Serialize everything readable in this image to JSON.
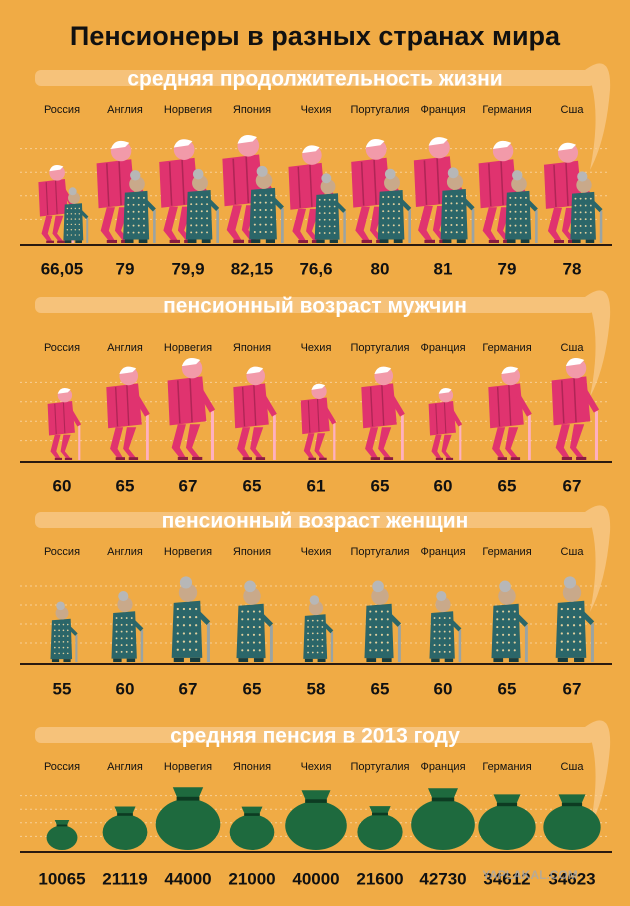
{
  "title": "Пенсионеры в разных странах мира",
  "watermark": "YAPLAKAL.COM",
  "chart_data": [
    {
      "type": "pictogram",
      "icon": "couple",
      "title": "средняя продолжительность жизни",
      "categories": [
        "Россия",
        "Англия",
        "Норвегия",
        "Япония",
        "Чехия",
        "Португалия",
        "Франция",
        "Германия",
        "Сша"
      ],
      "values": [
        66.05,
        79,
        79.9,
        82.15,
        76.6,
        80,
        81,
        79,
        78
      ],
      "value_labels": [
        "66,05",
        "79",
        "79,9",
        "82,15",
        "76,6",
        "80",
        "81",
        "79",
        "78"
      ],
      "colors": [
        "#e0336f",
        "#2b6669"
      ]
    },
    {
      "type": "pictogram",
      "icon": "man",
      "title": "пенсионный возраст мужчин",
      "categories": [
        "Россия",
        "Англия",
        "Норвегия",
        "Япония",
        "Чехия",
        "Португалия",
        "Франция",
        "Германия",
        "Сша"
      ],
      "values": [
        60,
        65,
        67,
        65,
        61,
        65,
        60,
        65,
        67
      ],
      "colors": [
        "#e0336f"
      ]
    },
    {
      "type": "pictogram",
      "icon": "woman",
      "title": "пенсионный возраст женщин",
      "categories": [
        "Россия",
        "Англия",
        "Норвегия",
        "Япония",
        "Чехия",
        "Португалия",
        "Франция",
        "Германия",
        "Сша"
      ],
      "values": [
        55,
        60,
        67,
        65,
        58,
        65,
        60,
        65,
        67
      ],
      "colors": [
        "#2b6669"
      ]
    },
    {
      "type": "pictogram",
      "icon": "bag",
      "title": "средняя пенсия в 2013 году",
      "categories": [
        "Россия",
        "Англия",
        "Норвегия",
        "Япония",
        "Чехия",
        "Португалия",
        "Франция",
        "Германия",
        "Сша"
      ],
      "values": [
        10065,
        21119,
        44000,
        21000,
        40000,
        21600,
        42730,
        34612,
        34623
      ],
      "colors": [
        "#1e6a3e"
      ]
    }
  ]
}
